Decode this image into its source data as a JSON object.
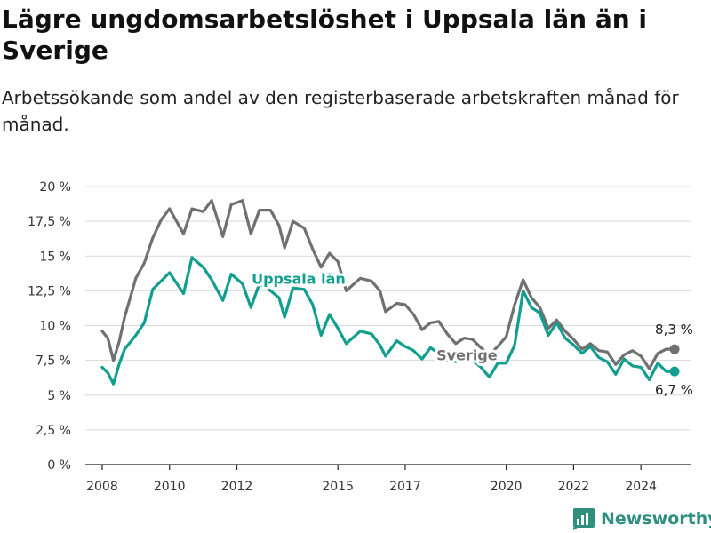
{
  "title": "Lägre ungdomsarbetslöshet i Uppsala län än i Sverige",
  "subtitle": "Arbetssökande som andel av den registerbaserade arbetskraften månad för månad.",
  "brand": "Newsworthy",
  "colors": {
    "sverige": "#707070",
    "uppsala": "#129e8e",
    "grid": "#d9d9d9",
    "axis": "#222222",
    "brand": "#2f8f7f"
  },
  "chart_data": {
    "type": "line",
    "grid": true,
    "x_axis": "date",
    "xlim": [
      "2007-07",
      "2025-07"
    ],
    "ylim": [
      0,
      20
    ],
    "yticks": [
      0,
      2.5,
      5,
      7.5,
      10,
      12.5,
      15,
      17.5,
      20
    ],
    "ytick_labels": [
      "0 %",
      "2,5 %",
      "5 %",
      "7,5 %",
      "10 %",
      "12,5 %",
      "15 %",
      "17,5 %",
      "20 %"
    ],
    "xticks": [
      "2008-01",
      "2010-01",
      "2012-01",
      "2015-01",
      "2017-01",
      "2020-01",
      "2022-01",
      "2024-01"
    ],
    "xtick_labels": [
      "2008",
      "2010",
      "2012",
      "2015",
      "2017",
      "2020",
      "2022",
      "2024"
    ],
    "series": [
      {
        "name": "Sverige",
        "color": "#707070",
        "end_label": "8,3 %",
        "points": [
          [
            "2008-01",
            9.6
          ],
          [
            "2008-03",
            9.1
          ],
          [
            "2008-05",
            7.5
          ],
          [
            "2008-07",
            8.8
          ],
          [
            "2008-09",
            10.6
          ],
          [
            "2009-01",
            13.4
          ],
          [
            "2009-04",
            14.5
          ],
          [
            "2009-07",
            16.3
          ],
          [
            "2009-10",
            17.6
          ],
          [
            "2010-01",
            18.4
          ],
          [
            "2010-06",
            16.6
          ],
          [
            "2010-09",
            18.4
          ],
          [
            "2011-01",
            18.2
          ],
          [
            "2011-04",
            19.0
          ],
          [
            "2011-08",
            16.4
          ],
          [
            "2011-11",
            18.7
          ],
          [
            "2012-03",
            19.0
          ],
          [
            "2012-06",
            16.6
          ],
          [
            "2012-09",
            18.3
          ],
          [
            "2013-01",
            18.3
          ],
          [
            "2013-04",
            17.2
          ],
          [
            "2013-06",
            15.6
          ],
          [
            "2013-09",
            17.5
          ],
          [
            "2014-01",
            17.0
          ],
          [
            "2014-04",
            15.5
          ],
          [
            "2014-07",
            14.2
          ],
          [
            "2014-10",
            15.2
          ],
          [
            "2015-01",
            14.6
          ],
          [
            "2015-04",
            12.5
          ],
          [
            "2015-09",
            13.4
          ],
          [
            "2016-01",
            13.2
          ],
          [
            "2016-04",
            12.5
          ],
          [
            "2016-06",
            11.0
          ],
          [
            "2016-10",
            11.6
          ],
          [
            "2017-01",
            11.5
          ],
          [
            "2017-04",
            10.8
          ],
          [
            "2017-07",
            9.7
          ],
          [
            "2017-10",
            10.2
          ],
          [
            "2018-01",
            10.3
          ],
          [
            "2018-04",
            9.4
          ],
          [
            "2018-07",
            8.7
          ],
          [
            "2018-10",
            9.1
          ],
          [
            "2019-01",
            9.0
          ],
          [
            "2019-04",
            8.4
          ],
          [
            "2019-07",
            7.9
          ],
          [
            "2019-10",
            8.5
          ],
          [
            "2020-01",
            9.2
          ],
          [
            "2020-04",
            11.5
          ],
          [
            "2020-07",
            13.3
          ],
          [
            "2020-10",
            12.0
          ],
          [
            "2021-01",
            11.3
          ],
          [
            "2021-04",
            9.8
          ],
          [
            "2021-07",
            10.4
          ],
          [
            "2021-10",
            9.6
          ],
          [
            "2022-01",
            9.0
          ],
          [
            "2022-04",
            8.3
          ],
          [
            "2022-07",
            8.7
          ],
          [
            "2022-10",
            8.2
          ],
          [
            "2023-01",
            8.1
          ],
          [
            "2023-04",
            7.2
          ],
          [
            "2023-07",
            7.9
          ],
          [
            "2023-10",
            8.2
          ],
          [
            "2024-01",
            7.8
          ],
          [
            "2024-04",
            6.9
          ],
          [
            "2024-07",
            8.0
          ],
          [
            "2024-10",
            8.3
          ],
          [
            "2025-01",
            8.3
          ]
        ]
      },
      {
        "name": "Uppsala län",
        "color": "#129e8e",
        "end_label": "6,7 %",
        "points": [
          [
            "2008-01",
            7.0
          ],
          [
            "2008-03",
            6.6
          ],
          [
            "2008-05",
            5.8
          ],
          [
            "2008-07",
            7.2
          ],
          [
            "2008-09",
            8.3
          ],
          [
            "2009-01",
            9.3
          ],
          [
            "2009-04",
            10.2
          ],
          [
            "2009-07",
            12.6
          ],
          [
            "2009-10",
            13.2
          ],
          [
            "2010-01",
            13.8
          ],
          [
            "2010-06",
            12.3
          ],
          [
            "2010-09",
            14.9
          ],
          [
            "2011-01",
            14.2
          ],
          [
            "2011-04",
            13.3
          ],
          [
            "2011-08",
            11.8
          ],
          [
            "2011-11",
            13.7
          ],
          [
            "2012-03",
            13.0
          ],
          [
            "2012-06",
            11.3
          ],
          [
            "2012-09",
            13.0
          ],
          [
            "2013-01",
            12.5
          ],
          [
            "2013-04",
            12.0
          ],
          [
            "2013-06",
            10.6
          ],
          [
            "2013-09",
            12.7
          ],
          [
            "2014-01",
            12.6
          ],
          [
            "2014-04",
            11.5
          ],
          [
            "2014-07",
            9.3
          ],
          [
            "2014-10",
            10.8
          ],
          [
            "2015-01",
            9.8
          ],
          [
            "2015-04",
            8.7
          ],
          [
            "2015-09",
            9.6
          ],
          [
            "2016-01",
            9.4
          ],
          [
            "2016-04",
            8.6
          ],
          [
            "2016-06",
            7.8
          ],
          [
            "2016-10",
            8.9
          ],
          [
            "2017-01",
            8.5
          ],
          [
            "2017-04",
            8.2
          ],
          [
            "2017-07",
            7.6
          ],
          [
            "2017-10",
            8.4
          ],
          [
            "2018-01",
            8.0
          ],
          [
            "2018-04",
            7.5
          ],
          [
            "2018-07",
            7.4
          ],
          [
            "2018-10",
            7.9
          ],
          [
            "2019-01",
            7.5
          ],
          [
            "2019-04",
            7.0
          ],
          [
            "2019-07",
            6.3
          ],
          [
            "2019-10",
            7.3
          ],
          [
            "2020-01",
            7.3
          ],
          [
            "2020-04",
            8.6
          ],
          [
            "2020-07",
            12.5
          ],
          [
            "2020-10",
            11.3
          ],
          [
            "2021-01",
            10.9
          ],
          [
            "2021-04",
            9.3
          ],
          [
            "2021-07",
            10.2
          ],
          [
            "2021-10",
            9.1
          ],
          [
            "2022-01",
            8.6
          ],
          [
            "2022-04",
            8.0
          ],
          [
            "2022-07",
            8.5
          ],
          [
            "2022-10",
            7.7
          ],
          [
            "2023-01",
            7.4
          ],
          [
            "2023-04",
            6.5
          ],
          [
            "2023-07",
            7.6
          ],
          [
            "2023-10",
            7.1
          ],
          [
            "2024-01",
            7.0
          ],
          [
            "2024-04",
            6.1
          ],
          [
            "2024-07",
            7.3
          ],
          [
            "2024-10",
            6.7
          ],
          [
            "2025-01",
            6.7
          ]
        ]
      }
    ]
  }
}
